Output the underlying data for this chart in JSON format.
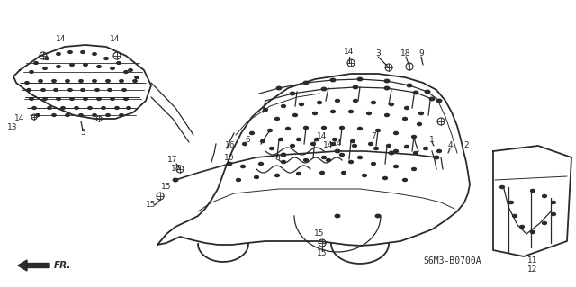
{
  "bg_color": "#ffffff",
  "line_color": "#2a2a2a",
  "diagram_code": "S6M3-B0700A",
  "fr_label": "FR.",
  "figsize": [
    6.4,
    3.19
  ],
  "dpi": 100
}
